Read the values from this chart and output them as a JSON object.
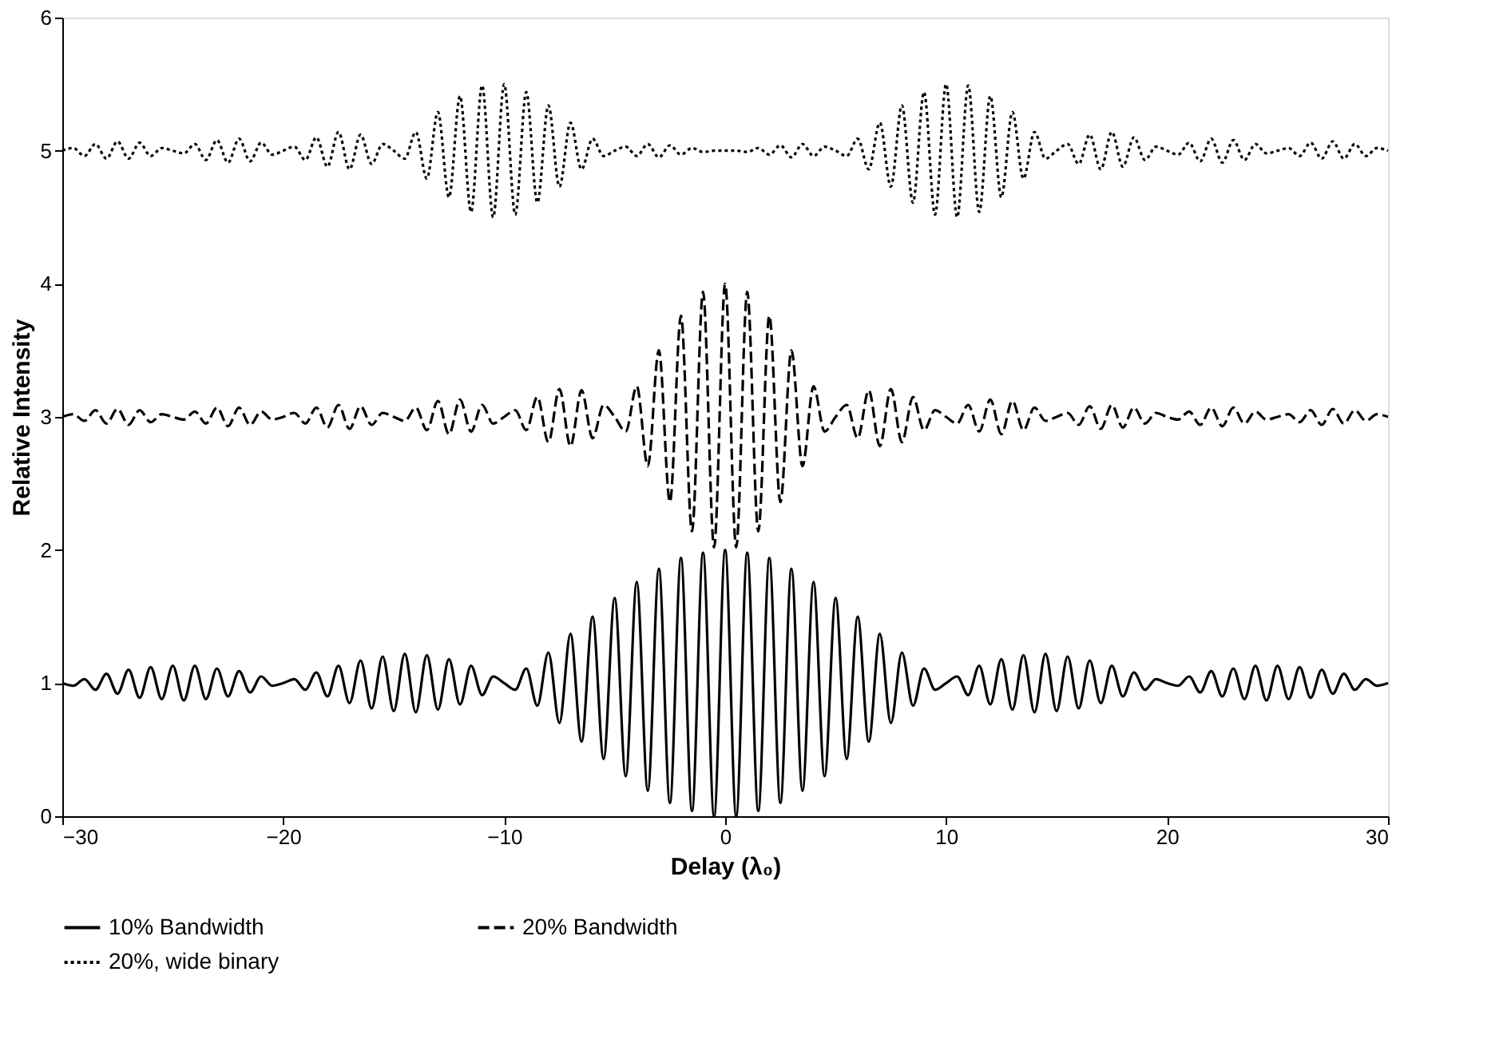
{
  "chart_data": {
    "type": "line",
    "xlabel": "Delay (λ₀)",
    "ylabel": "Relative Intensity",
    "xlim": [
      -30,
      30
    ],
    "xticks": [
      -30,
      -20,
      -10,
      0,
      10,
      20,
      30
    ],
    "ylim": [
      0,
      6
    ],
    "yticks": [
      0,
      1,
      2,
      3,
      4,
      5,
      6
    ],
    "legend": "bottom",
    "x": [
      -30,
      -29.5,
      -29,
      -28.5,
      -28,
      -27.5,
      -27,
      -26.5,
      -26,
      -25.5,
      -25,
      -24.5,
      -24,
      -23.5,
      -23,
      -22.5,
      -22,
      -21.5,
      -21,
      -20.5,
      -20,
      -19.5,
      -19,
      -18.5,
      -18,
      -17.5,
      -17,
      -16.5,
      -16,
      -15.5,
      -15,
      -14.5,
      -14,
      -13.5,
      -13,
      -12.5,
      -12,
      -11.5,
      -11,
      -10.5,
      -10,
      -9.5,
      -9,
      -8.5,
      -8,
      -7.5,
      -7,
      -6.5,
      -6,
      -5.5,
      -5,
      -4.5,
      -4,
      -3.5,
      -3,
      -2.5,
      -2,
      -1.5,
      -1,
      -0.5,
      0,
      0.5,
      1,
      1.5,
      2,
      2.5,
      3,
      3.5,
      4,
      4.5,
      5,
      5.5,
      6,
      6.5,
      7,
      7.5,
      8,
      8.5,
      9,
      9.5,
      10,
      10.5,
      11,
      11.5,
      12,
      12.5,
      13,
      13.5,
      14,
      14.5,
      15,
      15.5,
      16,
      16.5,
      17,
      17.5,
      18,
      18.5,
      19,
      19.5,
      20,
      20.5,
      21,
      21.5,
      22,
      22.5,
      23,
      23.5,
      24,
      24.5,
      25,
      25.5,
      26,
      26.5,
      27,
      27.5,
      28,
      28.5,
      29,
      29.5,
      30
    ],
    "series": [
      {
        "name": "10% Bandwidth",
        "color": "#000000",
        "line_style": "solid",
        "values": [
          1.0,
          0.98,
          1.03,
          0.95,
          1.07,
          0.92,
          1.1,
          0.89,
          1.12,
          0.88,
          1.13,
          0.87,
          1.13,
          0.88,
          1.11,
          0.9,
          1.09,
          0.93,
          1.05,
          0.98,
          1.0,
          1.03,
          0.95,
          1.08,
          0.9,
          1.13,
          0.85,
          1.17,
          0.81,
          1.2,
          0.79,
          1.22,
          0.78,
          1.21,
          0.8,
          1.18,
          0.84,
          1.13,
          0.91,
          1.05,
          1.0,
          0.95,
          1.11,
          0.83,
          1.23,
          0.7,
          1.37,
          0.56,
          1.5,
          0.43,
          1.64,
          0.3,
          1.76,
          0.19,
          1.86,
          0.1,
          1.94,
          0.04,
          1.98,
          0.0,
          2.0,
          0.0,
          1.98,
          0.04,
          1.94,
          0.1,
          1.86,
          0.19,
          1.76,
          0.3,
          1.64,
          0.43,
          1.5,
          0.56,
          1.37,
          0.7,
          1.23,
          0.83,
          1.11,
          0.95,
          1.0,
          1.05,
          0.91,
          1.13,
          0.84,
          1.18,
          0.8,
          1.21,
          0.78,
          1.22,
          0.79,
          1.2,
          0.81,
          1.17,
          0.85,
          1.13,
          0.9,
          1.08,
          0.95,
          1.03,
          1.0,
          0.98,
          1.05,
          0.93,
          1.09,
          0.9,
          1.11,
          0.88,
          1.13,
          0.87,
          1.13,
          0.88,
          1.12,
          0.89,
          1.1,
          0.92,
          1.07,
          0.95,
          1.03,
          0.98,
          1.0
        ]
      },
      {
        "name": "20% Bandwidth",
        "color": "#000000",
        "line_style": "dashed",
        "values": [
          3.0,
          3.02,
          2.97,
          3.05,
          2.95,
          3.06,
          2.94,
          3.05,
          2.96,
          3.02,
          3.0,
          2.98,
          3.04,
          2.95,
          3.07,
          2.93,
          3.07,
          2.94,
          3.04,
          2.98,
          3.0,
          3.03,
          2.95,
          3.07,
          2.92,
          3.09,
          2.91,
          3.08,
          2.94,
          3.03,
          3.0,
          2.97,
          3.07,
          2.9,
          3.12,
          2.87,
          3.13,
          2.89,
          3.09,
          2.95,
          3.0,
          3.05,
          2.9,
          3.15,
          2.81,
          3.21,
          2.78,
          3.2,
          2.84,
          3.09,
          3.0,
          2.89,
          3.23,
          2.63,
          3.5,
          2.36,
          3.76,
          2.14,
          3.94,
          2.02,
          4.0,
          2.02,
          3.94,
          2.14,
          3.76,
          2.36,
          3.5,
          2.63,
          3.23,
          2.89,
          3.0,
          3.09,
          2.84,
          3.2,
          2.78,
          3.21,
          2.81,
          3.15,
          2.9,
          3.05,
          3.0,
          2.95,
          3.09,
          2.89,
          3.13,
          2.87,
          3.12,
          2.9,
          3.07,
          2.97,
          3.0,
          3.03,
          2.94,
          3.08,
          2.91,
          3.09,
          2.92,
          3.07,
          2.95,
          3.03,
          3.0,
          2.98,
          3.04,
          2.94,
          3.07,
          2.93,
          3.07,
          2.95,
          3.04,
          2.98,
          3.0,
          3.02,
          2.96,
          3.05,
          2.94,
          3.06,
          2.95,
          3.05,
          2.97,
          3.02,
          3.0
        ]
      },
      {
        "name": "20%, wide binary",
        "color": "#000000",
        "line_style": "dotted",
        "values": [
          5.0,
          5.02,
          4.96,
          5.05,
          4.94,
          5.07,
          4.94,
          5.06,
          4.96,
          5.02,
          5.0,
          4.98,
          5.05,
          4.93,
          5.08,
          4.91,
          5.09,
          4.92,
          5.06,
          4.97,
          5.0,
          5.03,
          4.93,
          5.1,
          4.88,
          5.14,
          4.86,
          5.12,
          4.9,
          5.05,
          5.0,
          4.94,
          5.14,
          4.79,
          5.29,
          4.65,
          5.41,
          4.54,
          5.49,
          4.5,
          5.5,
          4.52,
          5.44,
          4.61,
          5.34,
          4.73,
          5.21,
          4.86,
          5.09,
          4.96,
          5.0,
          5.03,
          4.96,
          5.05,
          4.95,
          5.04,
          4.97,
          5.02,
          4.99,
          5.0,
          5.0,
          5.0,
          4.99,
          5.02,
          4.97,
          5.04,
          4.95,
          5.05,
          4.96,
          5.03,
          5.0,
          4.96,
          5.09,
          4.86,
          5.21,
          4.73,
          5.34,
          4.61,
          5.44,
          4.52,
          5.5,
          4.5,
          5.49,
          4.54,
          5.41,
          4.65,
          5.29,
          4.79,
          5.14,
          4.94,
          5.0,
          5.05,
          4.9,
          5.12,
          4.86,
          5.14,
          4.88,
          5.1,
          4.93,
          5.03,
          5.0,
          4.97,
          5.06,
          4.92,
          5.09,
          4.91,
          5.08,
          4.93,
          5.05,
          4.98,
          5.0,
          5.02,
          4.96,
          5.06,
          4.94,
          5.07,
          4.94,
          5.05,
          4.96,
          5.02,
          5.0
        ]
      }
    ]
  }
}
